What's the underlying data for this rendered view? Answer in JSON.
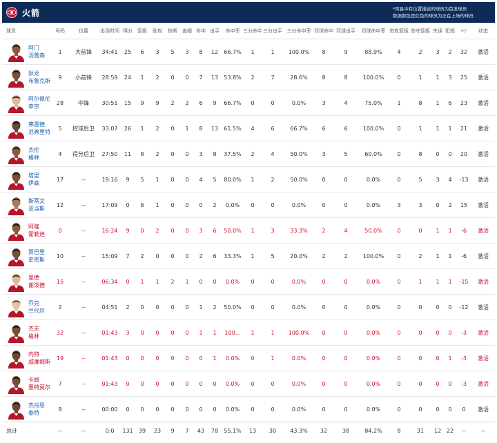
{
  "header": {
    "team_name": "火箭",
    "note_lines": [
      "*阿县中有位置描述的球员为首发球员",
      "数据颜色是红色的球员为正在上场的球员"
    ]
  },
  "colors": {
    "header_bg": "#0e2a57",
    "name_link": "#1f5fae",
    "oncourt_red": "#c8102e",
    "jersey_red": "#b7152a",
    "jersey_white": "#ffffff"
  },
  "columns": [
    "球员",
    "号码",
    "位置",
    "出场时间",
    "得分",
    "篮板",
    "助攻",
    "抢断",
    "盖帽",
    "命中",
    "出手",
    "命中率",
    "三分命中",
    "三分出手",
    "三分命中率",
    "罚球命中",
    "罚球出手",
    "罚球命中率",
    "进攻篮板",
    "防守篮板",
    "失误",
    "犯规",
    "+/-",
    "状态"
  ],
  "players": [
    {
      "name1": "阿门",
      "name2": "汤普森",
      "num": "1",
      "pos": "大前锋",
      "min": "34:41",
      "pts": "25",
      "reb": "6",
      "ast": "3",
      "stl": "5",
      "blk": "3",
      "fgm": "8",
      "fga": "12",
      "fgp": "66.7%",
      "tpm": "1",
      "tpa": "1",
      "tpp": "100.0%",
      "ftm": "8",
      "fta": "9",
      "ftp": "88.9%",
      "oreb": "4",
      "dreb": "2",
      "tov": "3",
      "pf": "2",
      "pm": "32",
      "status": "激活",
      "bench": false,
      "skin": "#8a5a3c",
      "hair": "#2a1a10"
    },
    {
      "name1": "狄龙",
      "name2": "布鲁克斯",
      "num": "9",
      "pos": "小前锋",
      "min": "28:59",
      "pts": "24",
      "reb": "1",
      "ast": "2",
      "stl": "0",
      "blk": "0",
      "fgm": "7",
      "fga": "13",
      "fgp": "53.8%",
      "tpm": "2",
      "tpa": "7",
      "tpp": "28.6%",
      "ftm": "8",
      "fta": "8",
      "ftp": "100.0%",
      "oreb": "0",
      "dreb": "1",
      "tov": "1",
      "pf": "3",
      "pm": "25",
      "status": "激活",
      "bench": false,
      "skin": "#7a4e34",
      "hair": "#1a1a1a"
    },
    {
      "name1": "阿尔佩伦",
      "name2": "申京",
      "num": "28",
      "pos": "中锋",
      "min": "30:51",
      "pts": "15",
      "reb": "9",
      "ast": "9",
      "stl": "2",
      "blk": "2",
      "fgm": "6",
      "fga": "9",
      "fgp": "66.7%",
      "tpm": "0",
      "tpa": "0",
      "tpp": "0.0%",
      "ftm": "3",
      "fta": "4",
      "ftp": "75.0%",
      "oreb": "1",
      "dreb": "8",
      "tov": "1",
      "pf": "6",
      "pm": "23",
      "status": "激活",
      "bench": false,
      "skin": "#e0b89a",
      "hair": "#3a2a1e"
    },
    {
      "name1": "弗雷德",
      "name2": "范弗里特",
      "num": "5",
      "pos": "控球后卫",
      "min": "33:07",
      "pts": "26",
      "reb": "1",
      "ast": "2",
      "stl": "0",
      "blk": "1",
      "fgm": "8",
      "fga": "13",
      "fgp": "61.5%",
      "tpm": "4",
      "tpa": "6",
      "tpp": "66.7%",
      "ftm": "6",
      "fta": "6",
      "ftp": "100.0%",
      "oreb": "0",
      "dreb": "1",
      "tov": "1",
      "pf": "1",
      "pm": "21",
      "status": "激活",
      "bench": false,
      "skin": "#6e452e",
      "hair": "#1a1a1a"
    },
    {
      "name1": "杰伦",
      "name2": "格林",
      "num": "4",
      "pos": "得分后卫",
      "min": "27:50",
      "pts": "11",
      "reb": "8",
      "ast": "2",
      "stl": "0",
      "blk": "0",
      "fgm": "3",
      "fga": "8",
      "fgp": "37.5%",
      "tpm": "2",
      "tpa": "4",
      "tpp": "50.0%",
      "ftm": "3",
      "fta": "5",
      "ftp": "60.0%",
      "oreb": "0",
      "dreb": "8",
      "tov": "0",
      "pf": "0",
      "pm": "20",
      "status": "激活",
      "bench": false,
      "skin": "#8a5a3c",
      "hair": "#2a1a10"
    },
    {
      "name1": "塔里",
      "name2": "伊森",
      "num": "17",
      "pos": "--",
      "min": "19:16",
      "pts": "9",
      "reb": "5",
      "ast": "1",
      "stl": "0",
      "blk": "0",
      "fgm": "4",
      "fga": "5",
      "fgp": "80.0%",
      "tpm": "1",
      "tpa": "2",
      "tpp": "50.0%",
      "ftm": "0",
      "fta": "0",
      "ftp": "0.0%",
      "oreb": "0",
      "dreb": "5",
      "tov": "3",
      "pf": "4",
      "pm": "-13",
      "status": "激活",
      "bench": false,
      "skin": "#7a4e34",
      "hair": "#1a1a1a"
    },
    {
      "name1": "斯蒂文",
      "name2": "亚当斯",
      "num": "12",
      "pos": "--",
      "min": "17:09",
      "pts": "0",
      "reb": "6",
      "ast": "1",
      "stl": "0",
      "blk": "0",
      "fgm": "0",
      "fga": "2",
      "fgp": "0.0%",
      "tpm": "0",
      "tpa": "0",
      "tpp": "0.0%",
      "ftm": "0",
      "fta": "0",
      "ftp": "0.0%",
      "oreb": "3",
      "dreb": "3",
      "tov": "0",
      "pf": "2",
      "pm": "15",
      "status": "激活",
      "bench": false,
      "skin": "#a87a5a",
      "hair": "#2a1a10"
    },
    {
      "name1": "阿隆",
      "name2": "霍勒迪",
      "num": "0",
      "pos": "--",
      "min": "16:24",
      "pts": "9",
      "reb": "0",
      "ast": "2",
      "stl": "0",
      "blk": "0",
      "fgm": "3",
      "fga": "6",
      "fgp": "50.0%",
      "tpm": "1",
      "tpa": "3",
      "tpp": "33.3%",
      "ftm": "2",
      "fta": "4",
      "ftp": "50.0%",
      "oreb": "0",
      "dreb": "0",
      "tov": "1",
      "pf": "1",
      "pm": "-6",
      "status": "激活",
      "bench": true,
      "skin": "#8a5a3c",
      "hair": "#1a1a1a"
    },
    {
      "name1": "贾巴里",
      "name2": "史密斯",
      "num": "10",
      "pos": "--",
      "min": "15:09",
      "pts": "7",
      "reb": "2",
      "ast": "0",
      "stl": "0",
      "blk": "0",
      "fgm": "2",
      "fga": "6",
      "fgp": "33.3%",
      "tpm": "1",
      "tpa": "5",
      "tpp": "20.0%",
      "ftm": "2",
      "fta": "2",
      "ftp": "100.0%",
      "oreb": "0",
      "dreb": "2",
      "tov": "1",
      "pf": "1",
      "pm": "-6",
      "status": "激活",
      "bench": false,
      "skin": "#7a4e34",
      "hair": "#1a1a1a"
    },
    {
      "name1": "里德",
      "name2": "谢泼德",
      "num": "15",
      "pos": "--",
      "min": "06:34",
      "pts": "0",
      "reb": "1",
      "ast": "1",
      "stl": "2",
      "blk": "1",
      "fgm": "0",
      "fga": "0",
      "fgp": "0.0%",
      "tpm": "0",
      "tpa": "0",
      "tpp": "0.0%",
      "ftm": "0",
      "fta": "0",
      "ftp": "0.0%",
      "oreb": "0",
      "dreb": "1",
      "tov": "1",
      "pf": "1",
      "pm": "-15",
      "status": "激活",
      "bench": true,
      "skin": "#e0b89a",
      "hair": "#5a3a22"
    },
    {
      "name1": "乔克",
      "name2": "兰代尔",
      "num": "2",
      "pos": "--",
      "min": "04:51",
      "pts": "2",
      "reb": "0",
      "ast": "0",
      "stl": "0",
      "blk": "0",
      "fgm": "1",
      "fga": "2",
      "fgp": "50.0%",
      "tpm": "0",
      "tpa": "0",
      "tpp": "0.0%",
      "ftm": "0",
      "fta": "0",
      "ftp": "0.0%",
      "oreb": "0",
      "dreb": "0",
      "tov": "0",
      "pf": "0",
      "pm": "-12",
      "status": "激活",
      "bench": false,
      "skin": "#e6c2a6",
      "hair": "#6a4a2e"
    },
    {
      "name1": "杰夫",
      "name2": "格林",
      "num": "32",
      "pos": "--",
      "min": "01:43",
      "pts": "3",
      "reb": "0",
      "ast": "0",
      "stl": "0",
      "blk": "0",
      "fgm": "1",
      "fga": "1",
      "fgp": "100...",
      "tpm": "1",
      "tpa": "1",
      "tpp": "100.0%",
      "ftm": "0",
      "fta": "0",
      "ftp": "0.0%",
      "oreb": "0",
      "dreb": "0",
      "tov": "0",
      "pf": "0",
      "pm": "-3",
      "status": "激活",
      "bench": true,
      "skin": "#7a4e34",
      "hair": "#1a1a1a"
    },
    {
      "name1": "内特",
      "name2": "威廉姆斯",
      "num": "19",
      "pos": "--",
      "min": "01:43",
      "pts": "0",
      "reb": "0",
      "ast": "0",
      "stl": "0",
      "blk": "0",
      "fgm": "0",
      "fga": "1",
      "fgp": "0.0%",
      "tpm": "0",
      "tpa": "1",
      "tpp": "0.0%",
      "ftm": "0",
      "fta": "0",
      "ftp": "0.0%",
      "oreb": "0",
      "dreb": "0",
      "tov": "0",
      "pf": "1",
      "pm": "-3",
      "status": "激活",
      "bench": true,
      "skin": "#6e452e",
      "hair": "#1a1a1a"
    },
    {
      "name1": "卡姆",
      "name2": "惠特莫尔",
      "num": "7",
      "pos": "--",
      "min": "01:43",
      "pts": "0",
      "reb": "0",
      "ast": "0",
      "stl": "0",
      "blk": "0",
      "fgm": "0",
      "fga": "0",
      "fgp": "0.0%",
      "tpm": "0",
      "tpa": "0",
      "tpp": "0.0%",
      "ftm": "0",
      "fta": "0",
      "ftp": "0.0%",
      "oreb": "0",
      "dreb": "0",
      "tov": "0",
      "pf": "0",
      "pm": "-3",
      "status": "激活",
      "bench": true,
      "skin": "#7a4e34",
      "hair": "#1a1a1a"
    },
    {
      "name1": "杰肖恩",
      "name2": "泰特",
      "num": "8",
      "pos": "--",
      "min": "00:00",
      "pts": "0",
      "reb": "0",
      "ast": "0",
      "stl": "0",
      "blk": "0",
      "fgm": "0",
      "fga": "0",
      "fgp": "0.0%",
      "tpm": "0",
      "tpa": "0",
      "tpp": "0.0%",
      "ftm": "0",
      "fta": "0",
      "ftp": "0.0%",
      "oreb": "0",
      "dreb": "0",
      "tov": "0",
      "pf": "0",
      "pm": "0",
      "status": "激活",
      "bench": false,
      "skin": "#6e452e",
      "hair": "#1a1a1a"
    }
  ],
  "totals": {
    "label": "总计",
    "num": "--",
    "pos": "--",
    "min": "0:0",
    "pts": "131",
    "reb": "39",
    "ast": "23",
    "stl": "9",
    "blk": "7",
    "fgm": "43",
    "fga": "78",
    "fgp": "55.1%",
    "tpm": "13",
    "tpa": "30",
    "tpp": "43.3%",
    "ftm": "32",
    "fta": "38",
    "ftp": "84.2%",
    "oreb": "8",
    "dreb": "31",
    "tov": "12",
    "pf": "22",
    "pm": "--",
    "status": "--"
  }
}
